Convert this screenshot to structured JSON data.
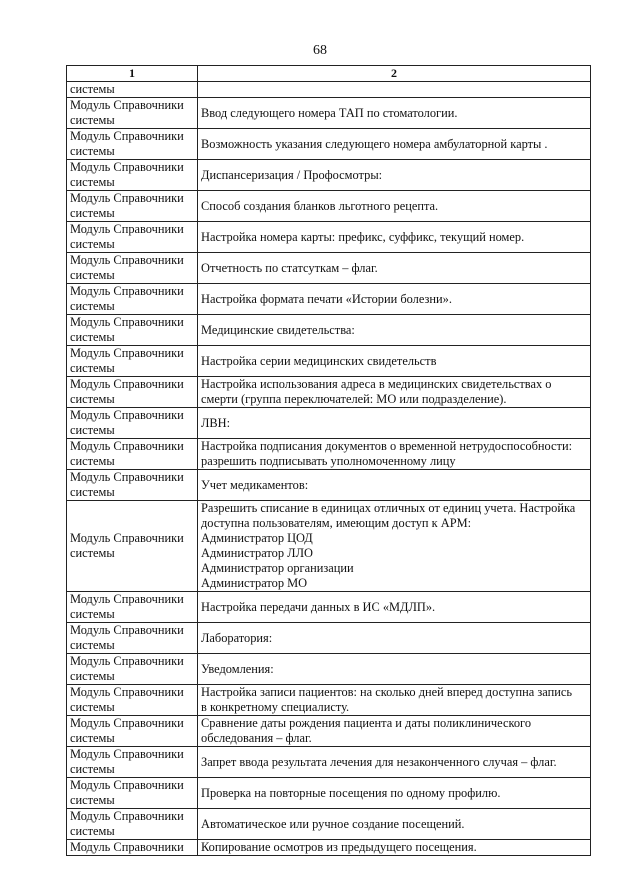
{
  "page_number": "68",
  "table": {
    "headers": [
      "1",
      "2"
    ],
    "continuation": {
      "col1": "системы",
      "col2": ""
    },
    "rows": [
      {
        "col1": "Модуль Справочники системы",
        "col2": [
          "Ввод следующего номера ТАП по стоматологии."
        ]
      },
      {
        "col1": "Модуль Справочники системы",
        "col2": [
          "Возможность указания следующего номера амбулаторной карты ."
        ]
      },
      {
        "col1": "Модуль Справочники системы",
        "col2": [
          "Диспансеризация / Профосмотры:"
        ]
      },
      {
        "col1": "Модуль Справочники системы",
        "col2": [
          "Способ создания бланков льготного рецепта."
        ]
      },
      {
        "col1": "Модуль Справочники системы",
        "col2": [
          "Настройка номера карты: префикс, суффикс, текущий номер."
        ]
      },
      {
        "col1": "Модуль Справочники системы",
        "col2": [
          "Отчетность по статсуткам – флаг."
        ]
      },
      {
        "col1": "Модуль Справочники системы",
        "col2": [
          "Настройка формата печати «Истории болезни»."
        ]
      },
      {
        "col1": "Модуль Справочники системы",
        "col2": [
          "Медицинские свидетельства:"
        ]
      },
      {
        "col1": "Модуль Справочники системы",
        "col2": [
          "Настройка серии медицинских свидетельств"
        ]
      },
      {
        "col1": "Модуль Справочники системы",
        "col2": [
          "Настройка использования адреса в медицинских свидетельствах о",
          "смерти (группа переключателей: МО или подразделение)."
        ]
      },
      {
        "col1": "Модуль Справочники системы",
        "col2": [
          "ЛВН:"
        ]
      },
      {
        "col1": "Модуль Справочники системы",
        "col2": [
          "Настройка подписания документов о временной нетрудоспособности:",
          "разрешить подписывать уполномоченному лицу"
        ]
      },
      {
        "col1": "Модуль Справочники системы",
        "col2": [
          "Учет медикаментов:"
        ]
      },
      {
        "col1": "Модуль Справочники системы",
        "col2": [
          "Разрешить списание в единицах отличных от единиц учета. Настройка",
          "доступна пользователям, имеющим доступ к АРМ:",
          "Администратор ЦОД",
          "Администратор ЛЛО",
          "Администратор организации",
          "Администратор МО"
        ]
      },
      {
        "col1": "Модуль Справочники системы",
        "col2": [
          "Настройка передачи данных в ИС «МДЛП»."
        ]
      },
      {
        "col1": "Модуль Справочники системы",
        "col2": [
          "Лаборатория:"
        ]
      },
      {
        "col1": "Модуль Справочники системы",
        "col2": [
          "Уведомления:"
        ]
      },
      {
        "col1": "Модуль Справочники системы",
        "col2": [
          "Настройка записи пациентов: на сколько дней вперед доступна запись",
          "в конкретному специалисту."
        ]
      },
      {
        "col1": "Модуль Справочники системы",
        "col2": [
          "Сравнение даты рождения пациента и даты поликлинического",
          "обследования – флаг."
        ]
      },
      {
        "col1": "Модуль Справочники системы",
        "col2": [
          "Запрет ввода результата лечения для незаконченного случая – флаг."
        ]
      },
      {
        "col1": "Модуль Справочники системы",
        "col2": [
          "Проверка на повторные посещения по одному профилю."
        ]
      },
      {
        "col1": "Модуль Справочники системы",
        "col2": [
          "Автоматическое или ручное создание посещений."
        ]
      },
      {
        "col1": "Модуль Справочники",
        "col2": [
          "Копирование осмотров из предыдущего посещения."
        ]
      }
    ]
  }
}
